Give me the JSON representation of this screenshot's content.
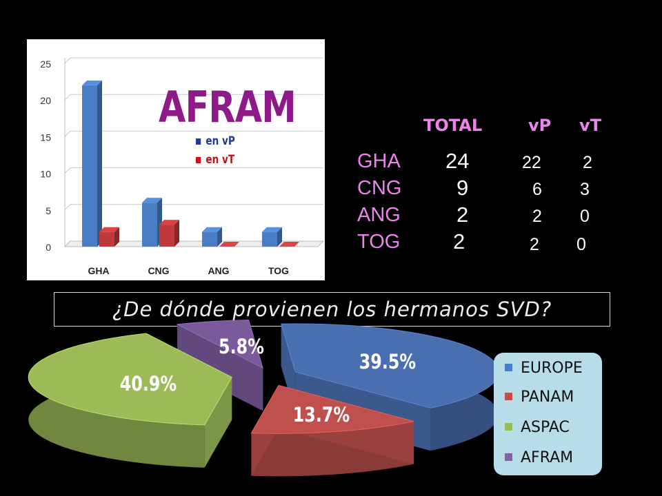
{
  "chart_data": [
    {
      "type": "bar",
      "title": "AFRAM",
      "categories": [
        "GHA",
        "CNG",
        "ANG",
        "TOG"
      ],
      "series": [
        {
          "name": "en vP",
          "values": [
            22,
            6,
            2,
            2
          ],
          "color": "#4a7ec4"
        },
        {
          "name": "en vT",
          "values": [
            2,
            3,
            0,
            0
          ],
          "color": "#c0393b"
        }
      ],
      "ylim": [
        0,
        25
      ],
      "yticks": [
        "0",
        "5",
        "10",
        "15",
        "20",
        "25"
      ],
      "grid": true,
      "legend": "top-right"
    },
    {
      "type": "table",
      "columns": [
        "",
        "TOTAL",
        "vP",
        "vT"
      ],
      "rows": [
        {
          "label": "GHA",
          "total": "24",
          "vp": "22",
          "vt": "2"
        },
        {
          "label": "CNG",
          "total": "9",
          "vp": "6",
          "vt": "3"
        },
        {
          "label": "ANG",
          "total": "2",
          "vp": "2",
          "vt": "0"
        },
        {
          "label": "TOG",
          "total": "2",
          "vp": "2",
          "vt": "0"
        }
      ]
    },
    {
      "type": "pie",
      "title": "¿De dónde provienen los hermanos SVD?",
      "slices": [
        {
          "name": "EUROPE",
          "value": 39.5,
          "label": "39.5%",
          "color": "#4a6fb0"
        },
        {
          "name": "PANAM",
          "value": 13.7,
          "label": "13.7%",
          "color": "#c0504d"
        },
        {
          "name": "ASPAC",
          "value": 40.9,
          "label": "40.9%",
          "color": "#9bbb59"
        },
        {
          "name": "AFRAM",
          "value": 5.8,
          "label": "5.8%",
          "color": "#7a5a9b"
        }
      ],
      "legend": "right"
    }
  ]
}
